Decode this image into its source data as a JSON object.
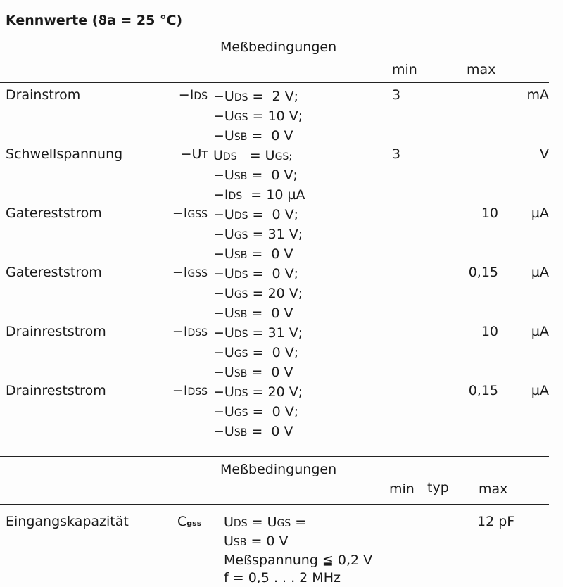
{
  "title": "Kennwerte (ϑa = 25 °C)",
  "table1": {
    "header_conditions": "Meßbedingungen",
    "header_min": "min",
    "header_max": "max",
    "rows": [
      {
        "name": "Drainstrom",
        "sym": "−I",
        "sym_sub": "DS",
        "cond": [
          {
            "p": "−U",
            "s": "DS",
            "v": " =  2 V;"
          },
          {
            "p": "−U",
            "s": "GS",
            "v": " = 10 V;"
          },
          {
            "p": "−U",
            "s": "SB",
            "v": " =  0 V"
          }
        ],
        "min": "3",
        "max": "",
        "unit": "mA"
      },
      {
        "name": "Schwellspannung",
        "sym": "−U",
        "sym_sub": "T",
        "cond": [
          {
            "p": "U",
            "s": "DS",
            "v": "   = U"
          },
          {
            "p": "−U",
            "s": "SB",
            "v": " =  0 V;"
          },
          {
            "p": "−I",
            "s": "DS",
            "v": "  = 10 µA"
          }
        ],
        "cond0_tail_sub": "GS;",
        "min": "3",
        "max": "",
        "unit": "V"
      },
      {
        "name": "Gatereststrom",
        "sym": "−I",
        "sym_sub": "GSS",
        "cond": [
          {
            "p": "−U",
            "s": "DS",
            "v": " =  0 V;"
          },
          {
            "p": "−U",
            "s": "GS",
            "v": " = 31 V;"
          },
          {
            "p": "−U",
            "s": "SB",
            "v": " =  0 V"
          }
        ],
        "min": "",
        "max": "10",
        "unit": "µA"
      },
      {
        "name": "Gatereststrom",
        "sym": "−I",
        "sym_sub": "GSS",
        "cond": [
          {
            "p": "−U",
            "s": "DS",
            "v": " =  0 V;"
          },
          {
            "p": "−U",
            "s": "GS",
            "v": " = 20 V;"
          },
          {
            "p": "−U",
            "s": "SB",
            "v": " =  0 V"
          }
        ],
        "min": "",
        "max": "0,15",
        "unit": "µA"
      },
      {
        "name": "Drainreststrom",
        "sym": "−I",
        "sym_sub": "DSS",
        "cond": [
          {
            "p": "−U",
            "s": "DS",
            "v": " = 31 V;"
          },
          {
            "p": "−U",
            "s": "GS",
            "v": " =  0 V;"
          },
          {
            "p": "−U",
            "s": "SB",
            "v": " =  0 V"
          }
        ],
        "min": "",
        "max": "10",
        "unit": "µA"
      },
      {
        "name": "Drainreststrom",
        "sym": "−I",
        "sym_sub": "DSS",
        "cond": [
          {
            "p": "−U",
            "s": "DS",
            "v": " = 20 V;"
          },
          {
            "p": "−U",
            "s": "GS",
            "v": " =  0 V;"
          },
          {
            "p": "−U",
            "s": "SB",
            "v": " =  0 V"
          }
        ],
        "min": "",
        "max": "0,15",
        "unit": "µA"
      }
    ]
  },
  "table2": {
    "header_conditions": "Meßbedingungen",
    "header_min": "min",
    "header_typ": "typ",
    "header_max": "max",
    "row": {
      "name": "Eingangskapazität",
      "sym": "C",
      "sym_sub": "gss",
      "cond": [
        "U",
        "DS",
        " = U",
        "GS",
        " =",
        "U",
        "SB",
        " = 0 V",
        "Meßspannung ≦ 0,2 V",
        "f = 0,5 . . . 2 MHz"
      ],
      "max": "12 pF"
    }
  }
}
